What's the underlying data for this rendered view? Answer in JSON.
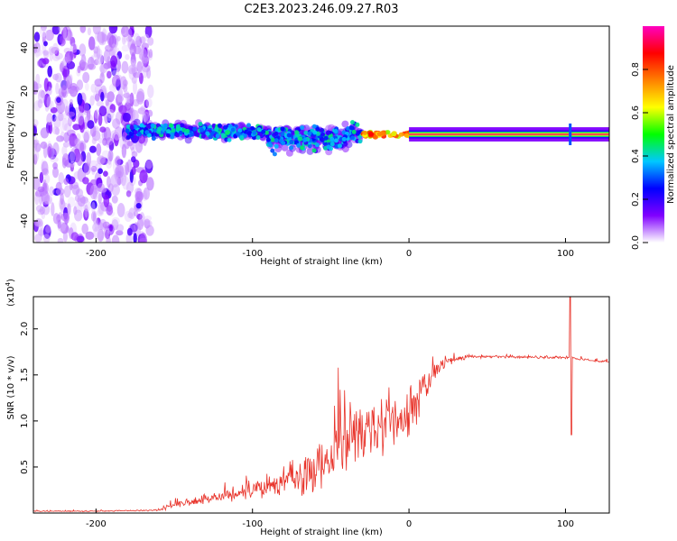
{
  "title": "C2E3.2023.246.09.27.R03",
  "chart_data": [
    {
      "type": "heatmap",
      "name": "spectrogram",
      "xlabel": "Height of straight line (km)",
      "ylabel": "Frequency (Hz)",
      "xlim": [
        -240,
        128
      ],
      "ylim": [
        -50,
        50
      ],
      "xticks": [
        -200,
        -100,
        0,
        100
      ],
      "xtick_labels": [
        "-200",
        "-100",
        "0",
        "100"
      ],
      "yticks": [
        -40,
        -20,
        0,
        20,
        40
      ],
      "ytick_labels": [
        "-40",
        "-20",
        "0",
        "20",
        "40"
      ],
      "colorbar": {
        "label": "Normalized spectral amplitude",
        "range": [
          0,
          1
        ],
        "ticks": [
          0.0,
          0.2,
          0.4,
          0.6,
          0.8
        ],
        "tick_labels": [
          "0.0",
          "0.2",
          "0.4",
          "0.6",
          "0.8"
        ],
        "colors": [
          "#ffffff",
          "#8000ff",
          "#0000ff",
          "#00c8ff",
          "#00ff00",
          "#ffff00",
          "#ff8000",
          "#ff0000",
          "#ff00c0"
        ]
      },
      "regions": [
        {
          "label": "broadband noise",
          "x": [
            -240,
            -165
          ],
          "freq": [
            -50,
            50
          ],
          "amplitude": 0.1
        },
        {
          "label": "scattered band",
          "x": [
            -180,
            -30
          ],
          "freq_center": [
            2,
            0
          ],
          "freq_spread": 6,
          "amplitude": 0.35
        },
        {
          "label": "narrow carrier",
          "x": [
            0,
            128
          ],
          "freq_center": 0,
          "freq_spread": 1.5,
          "amplitude": 0.95
        }
      ]
    },
    {
      "type": "line",
      "name": "snr",
      "xlabel": "Height of straight line (km)",
      "ylabel": "SNR (10 * v/v)",
      "multiplier_label": "(x10",
      "multiplier_exp": "4",
      "multiplier_close": ")",
      "xlim": [
        -240,
        128
      ],
      "ylim": [
        0,
        23500
      ],
      "xticks": [
        -200,
        -100,
        0,
        100
      ],
      "xtick_labels": [
        "-200",
        "-100",
        "0",
        "100"
      ],
      "yticks": [
        5000,
        10000,
        15000,
        20000
      ],
      "ytick_labels": [
        "0.5",
        "1.0",
        "1.5",
        "2.0"
      ],
      "color": "#e8332a",
      "envelope": {
        "x": [
          -240,
          -200,
          -160,
          -150,
          -120,
          -100,
          -80,
          -60,
          -50,
          -40,
          -30,
          -20,
          -10,
          0,
          10,
          20,
          30,
          40,
          60,
          80,
          100,
          103,
          110,
          128
        ],
        "y": [
          200,
          200,
          300,
          1000,
          1800,
          2500,
          3400,
          4500,
          6500,
          8000,
          9000,
          9500,
          10000,
          10500,
          14000,
          16000,
          16700,
          17000,
          17000,
          16900,
          16900,
          16900,
          16700,
          16400
        ]
      },
      "noise_scale": {
        "x": [
          -240,
          -160,
          -150,
          -120,
          -100,
          -80,
          -60,
          -40,
          -20,
          0,
          10,
          20,
          30,
          40,
          128
        ],
        "y": [
          50,
          80,
          500,
          700,
          900,
          1400,
          2600,
          3500,
          3800,
          3200,
          2000,
          800,
          300,
          150,
          150
        ]
      },
      "spike": {
        "x": 103,
        "peak": 24000,
        "dip": 8500
      }
    }
  ]
}
